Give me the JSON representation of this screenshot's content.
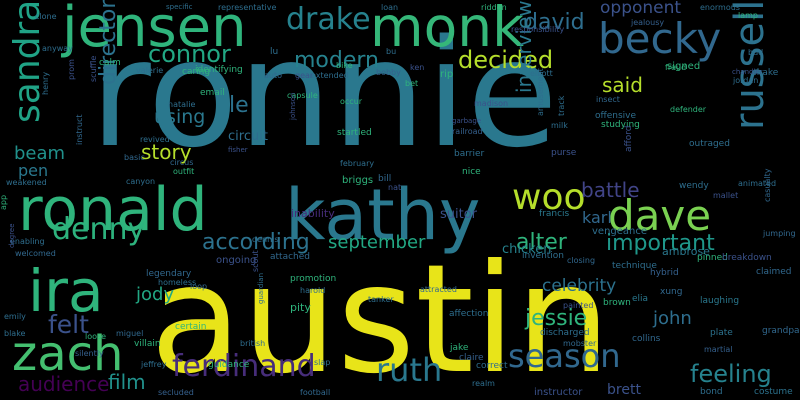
{
  "background": "#000000",
  "words": [
    {
      "text": "austin",
      "color": "#e8e419"
    },
    {
      "text": "ronnie",
      "color": "#2a788e"
    },
    {
      "text": "kathy",
      "color": "#2a788e"
    },
    {
      "text": "ronald",
      "color": "#2fb47c"
    },
    {
      "text": "jensen",
      "color": "#2fb47c"
    },
    {
      "text": "monk",
      "color": "#35b779"
    },
    {
      "text": "becky",
      "color": "#31688e"
    },
    {
      "text": "russell",
      "color": "#2c728e"
    },
    {
      "text": "ira",
      "color": "#2fb47c"
    },
    {
      "text": "zach",
      "color": "#44bf70"
    },
    {
      "text": "sandra",
      "color": "#20a386"
    },
    {
      "text": "dave",
      "color": "#7ad151"
    },
    {
      "text": "woo",
      "color": "#b5de2b"
    },
    {
      "text": "denny",
      "color": "#2db27d"
    },
    {
      "text": "season",
      "color": "#31688e"
    },
    {
      "text": "ruth",
      "color": "#2a788e"
    },
    {
      "text": "ferdinand",
      "color": "#472d7b"
    },
    {
      "text": "drake",
      "color": "#26828e"
    },
    {
      "text": "david",
      "color": "#2e6e8e"
    },
    {
      "text": "connor",
      "color": "#22a884"
    },
    {
      "text": "modern",
      "color": "#26828e"
    },
    {
      "text": "decided",
      "color": "#b5de2b"
    },
    {
      "text": "according",
      "color": "#2c728e"
    },
    {
      "text": "september",
      "color": "#22a884"
    },
    {
      "text": "important",
      "color": "#1f988b"
    },
    {
      "text": "alter",
      "color": "#2fb47c"
    },
    {
      "text": "feeling",
      "color": "#26828e"
    },
    {
      "text": "audience",
      "color": "#440154"
    },
    {
      "text": "director",
      "color": "#2c728e"
    },
    {
      "text": "interview",
      "color": "#2a788e"
    },
    {
      "text": "said",
      "color": "#b5de2b"
    },
    {
      "text": "opponent",
      "color": "#3b528b"
    },
    {
      "text": "le",
      "color": "#2c728e"
    },
    {
      "text": "using",
      "color": "#2a788e"
    },
    {
      "text": "story",
      "color": "#b5de2b"
    },
    {
      "text": "beam",
      "color": "#21918c"
    },
    {
      "text": "pen",
      "color": "#2a788e"
    },
    {
      "text": "battle",
      "color": "#414487"
    },
    {
      "text": "karl",
      "color": "#31688e"
    },
    {
      "text": "celebrity",
      "color": "#2c728e"
    },
    {
      "text": "jessie",
      "color": "#2fb47c"
    },
    {
      "text": "john",
      "color": "#2e6e8e"
    },
    {
      "text": "felt",
      "color": "#3b528b"
    },
    {
      "text": "jody",
      "color": "#22a884"
    },
    {
      "text": "film",
      "color": "#21918c"
    },
    {
      "text": "brett",
      "color": "#3b528b"
    },
    {
      "text": "circuit",
      "color": "#2e6e8e"
    },
    {
      "text": "chicken",
      "color": "#26828e"
    },
    {
      "text": "inability",
      "color": "#472d7b"
    },
    {
      "text": "suitor",
      "color": "#3b528b"
    },
    {
      "text": "vengeance",
      "color": "#2e6e8e"
    },
    {
      "text": "francis",
      "color": "#2a788e"
    },
    {
      "text": "ambrose",
      "color": "#2a788e"
    },
    {
      "text": "invention",
      "color": "#2e6e8e"
    },
    {
      "text": "closing",
      "color": "#31688e"
    },
    {
      "text": "hybrid",
      "color": "#35608d"
    },
    {
      "text": "pinned",
      "color": "#2fb47c"
    },
    {
      "text": "breakdown",
      "color": "#3b528b"
    },
    {
      "text": "technique",
      "color": "#2e6e8e"
    },
    {
      "text": "claimed",
      "color": "#31688e"
    },
    {
      "text": "laughing",
      "color": "#2a788e"
    },
    {
      "text": "plate",
      "color": "#2c728e"
    },
    {
      "text": "collins",
      "color": "#31688e"
    },
    {
      "text": "elia",
      "color": "#2a788e"
    },
    {
      "text": "xung",
      "color": "#31688e"
    },
    {
      "text": "grandpa",
      "color": "#31688e"
    },
    {
      "text": "martial",
      "color": "#35608d"
    },
    {
      "text": "bond",
      "color": "#2e6e8e"
    },
    {
      "text": "costume",
      "color": "#2c728e"
    },
    {
      "text": "instructor",
      "color": "#3b528b"
    },
    {
      "text": "realm",
      "color": "#2e6e8e"
    },
    {
      "text": "correct",
      "color": "#2e6e8e"
    },
    {
      "text": "claire",
      "color": "#35608d"
    },
    {
      "text": "jake",
      "color": "#2fb47c"
    },
    {
      "text": "discharged",
      "color": "#2e6e8e"
    },
    {
      "text": "mobster",
      "color": "#31688e"
    },
    {
      "text": "painted",
      "color": "#3b528b"
    },
    {
      "text": "brown",
      "color": "#2fb47c"
    },
    {
      "text": "affection",
      "color": "#2e6e8e"
    },
    {
      "text": "attracted",
      "color": "#31688e"
    },
    {
      "text": "tanker",
      "color": "#2e6e8e"
    },
    {
      "text": "promotion",
      "color": "#2fb47c"
    },
    {
      "text": "harold",
      "color": "#2e6e8e"
    },
    {
      "text": "pity",
      "color": "#2fb47c"
    },
    {
      "text": "scout",
      "color": "#3b528b"
    },
    {
      "text": "slap",
      "color": "#2e6e8e"
    },
    {
      "text": "british",
      "color": "#2e6e8e"
    },
    {
      "text": "guidance",
      "color": "#2fb47c"
    },
    {
      "text": "guardian",
      "color": "#2e6e8e"
    },
    {
      "text": "football",
      "color": "#31688e"
    },
    {
      "text": "secluded",
      "color": "#35608d"
    },
    {
      "text": "jeffrey",
      "color": "#2e6e8e"
    },
    {
      "text": "villain",
      "color": "#2fb47c"
    },
    {
      "text": "certain",
      "color": "#2fb47c"
    },
    {
      "text": "loop",
      "color": "#31688e"
    },
    {
      "text": "homeless",
      "color": "#2e6e8e"
    },
    {
      "text": "legendary",
      "color": "#31688e"
    },
    {
      "text": "ongoing",
      "color": "#3b528b"
    },
    {
      "text": "attached",
      "color": "#31688e"
    },
    {
      "text": "miguel",
      "color": "#31688e"
    },
    {
      "text": "loose",
      "color": "#2fb47c"
    },
    {
      "text": "silently",
      "color": "#35608d"
    },
    {
      "text": "blake",
      "color": "#2e6e8e"
    },
    {
      "text": "emily",
      "color": "#2e6e8e"
    },
    {
      "text": "welcomed",
      "color": "#31688e"
    },
    {
      "text": "enabling",
      "color": "#2e6e8e"
    },
    {
      "text": "degree",
      "color": "#3b528b"
    },
    {
      "text": "weakened",
      "color": "#2e6e8e"
    },
    {
      "text": "app",
      "color": "#2fb47c"
    },
    {
      "text": "canyon",
      "color": "#2e6e8e"
    },
    {
      "text": "outfit",
      "color": "#2fb47c"
    },
    {
      "text": "circus",
      "color": "#31688e"
    },
    {
      "text": "revived",
      "color": "#2e6e8e"
    },
    {
      "text": "basic",
      "color": "#31688e"
    },
    {
      "text": "instruct",
      "color": "#31688e"
    },
    {
      "text": "dennis",
      "color": "#2e6e8e"
    },
    {
      "text": "briggs",
      "color": "#2fb47c"
    },
    {
      "text": "february",
      "color": "#2e6e8e"
    },
    {
      "text": "startled",
      "color": "#2fb47c"
    },
    {
      "text": "occur",
      "color": "#2fb47c"
    },
    {
      "text": "railroad",
      "color": "#35608d"
    },
    {
      "text": "barrier",
      "color": "#2e6e8e"
    },
    {
      "text": "nice",
      "color": "#2fb47c"
    },
    {
      "text": "madison",
      "color": "#3b528b"
    },
    {
      "text": "bet",
      "color": "#2fb47c"
    },
    {
      "text": "purse",
      "color": "#3b528b"
    },
    {
      "text": "insect",
      "color": "#31688e"
    },
    {
      "text": "studying",
      "color": "#2fb47c"
    },
    {
      "text": "offensive",
      "color": "#2e6e8e"
    },
    {
      "text": "milk",
      "color": "#2e6e8e"
    },
    {
      "text": "outraged",
      "color": "#2e6e8e"
    },
    {
      "text": "defender",
      "color": "#2fb47c"
    },
    {
      "text": "wendy",
      "color": "#2e6e8e"
    },
    {
      "text": "animated",
      "color": "#2e6e8e"
    },
    {
      "text": "jumping",
      "color": "#31688e"
    },
    {
      "text": "casualty",
      "color": "#31688e"
    },
    {
      "text": "mallet",
      "color": "#3b528b"
    },
    {
      "text": "henry",
      "color": "#2e6e8e"
    },
    {
      "text": "scuffle",
      "color": "#3b528b"
    },
    {
      "text": "calm",
      "color": "#2fb47c"
    },
    {
      "text": "valerie",
      "color": "#2e6e8e"
    },
    {
      "text": "caring",
      "color": "#2fb47c"
    },
    {
      "text": "identifying",
      "color": "#2fb47c"
    },
    {
      "text": "auto",
      "color": "#31688e"
    },
    {
      "text": "gear",
      "color": "#3b528b"
    },
    {
      "text": "extended",
      "color": "#2e6e8e"
    },
    {
      "text": "bobby",
      "color": "#35608d"
    },
    {
      "text": "rip",
      "color": "#2fb47c"
    },
    {
      "text": "elliott",
      "color": "#2e6e8e"
    },
    {
      "text": "signed",
      "color": "#2fb47c"
    },
    {
      "text": "jordan",
      "color": "#2e6e8e"
    },
    {
      "text": "chandler",
      "color": "#3b528b"
    },
    {
      "text": "shake",
      "color": "#2e6e8e"
    },
    {
      "text": "bud",
      "color": "#2e6e8e"
    },
    {
      "text": "lamp",
      "color": "#2fb47c"
    },
    {
      "text": "jealousy",
      "color": "#35608d"
    },
    {
      "text": "fraud",
      "color": "#2fb47c"
    },
    {
      "text": "enormous",
      "color": "#2e6e8e"
    },
    {
      "text": "specific",
      "color": "#2e6e8e"
    },
    {
      "text": "representative",
      "color": "#2e6e8e"
    },
    {
      "text": "loan",
      "color": "#2e6e8e"
    },
    {
      "text": "ridden",
      "color": "#2fb47c"
    },
    {
      "text": "clone",
      "color": "#2e6e8e"
    },
    {
      "text": "bike",
      "color": "#2fb47c"
    },
    {
      "text": "responsibility",
      "color": "#3b528b"
    },
    {
      "text": "anyway",
      "color": "#2e6e8e"
    },
    {
      "text": "email",
      "color": "#2fb47c"
    },
    {
      "text": "natalie",
      "color": "#2e6e8e"
    },
    {
      "text": "capsule",
      "color": "#2fb47c"
    },
    {
      "text": "fisher",
      "color": "#3b528b"
    },
    {
      "text": "nat",
      "color": "#3b528b"
    },
    {
      "text": "garbage",
      "color": "#3b528b"
    },
    {
      "text": "amusement",
      "color": "#2e6e8e"
    },
    {
      "text": "track",
      "color": "#2e6e8e"
    },
    {
      "text": "afford",
      "color": "#3b528b"
    },
    {
      "text": "bu",
      "color": "#2e6e8e"
    },
    {
      "text": "bill",
      "color": "#31688e"
    },
    {
      "text": "ken",
      "color": "#3b528b"
    },
    {
      "text": "johnson",
      "color": "#3b528b"
    },
    {
      "text": "prom",
      "color": "#3b528b"
    },
    {
      "text": "lu",
      "color": "#2e6e8e"
    }
  ]
}
